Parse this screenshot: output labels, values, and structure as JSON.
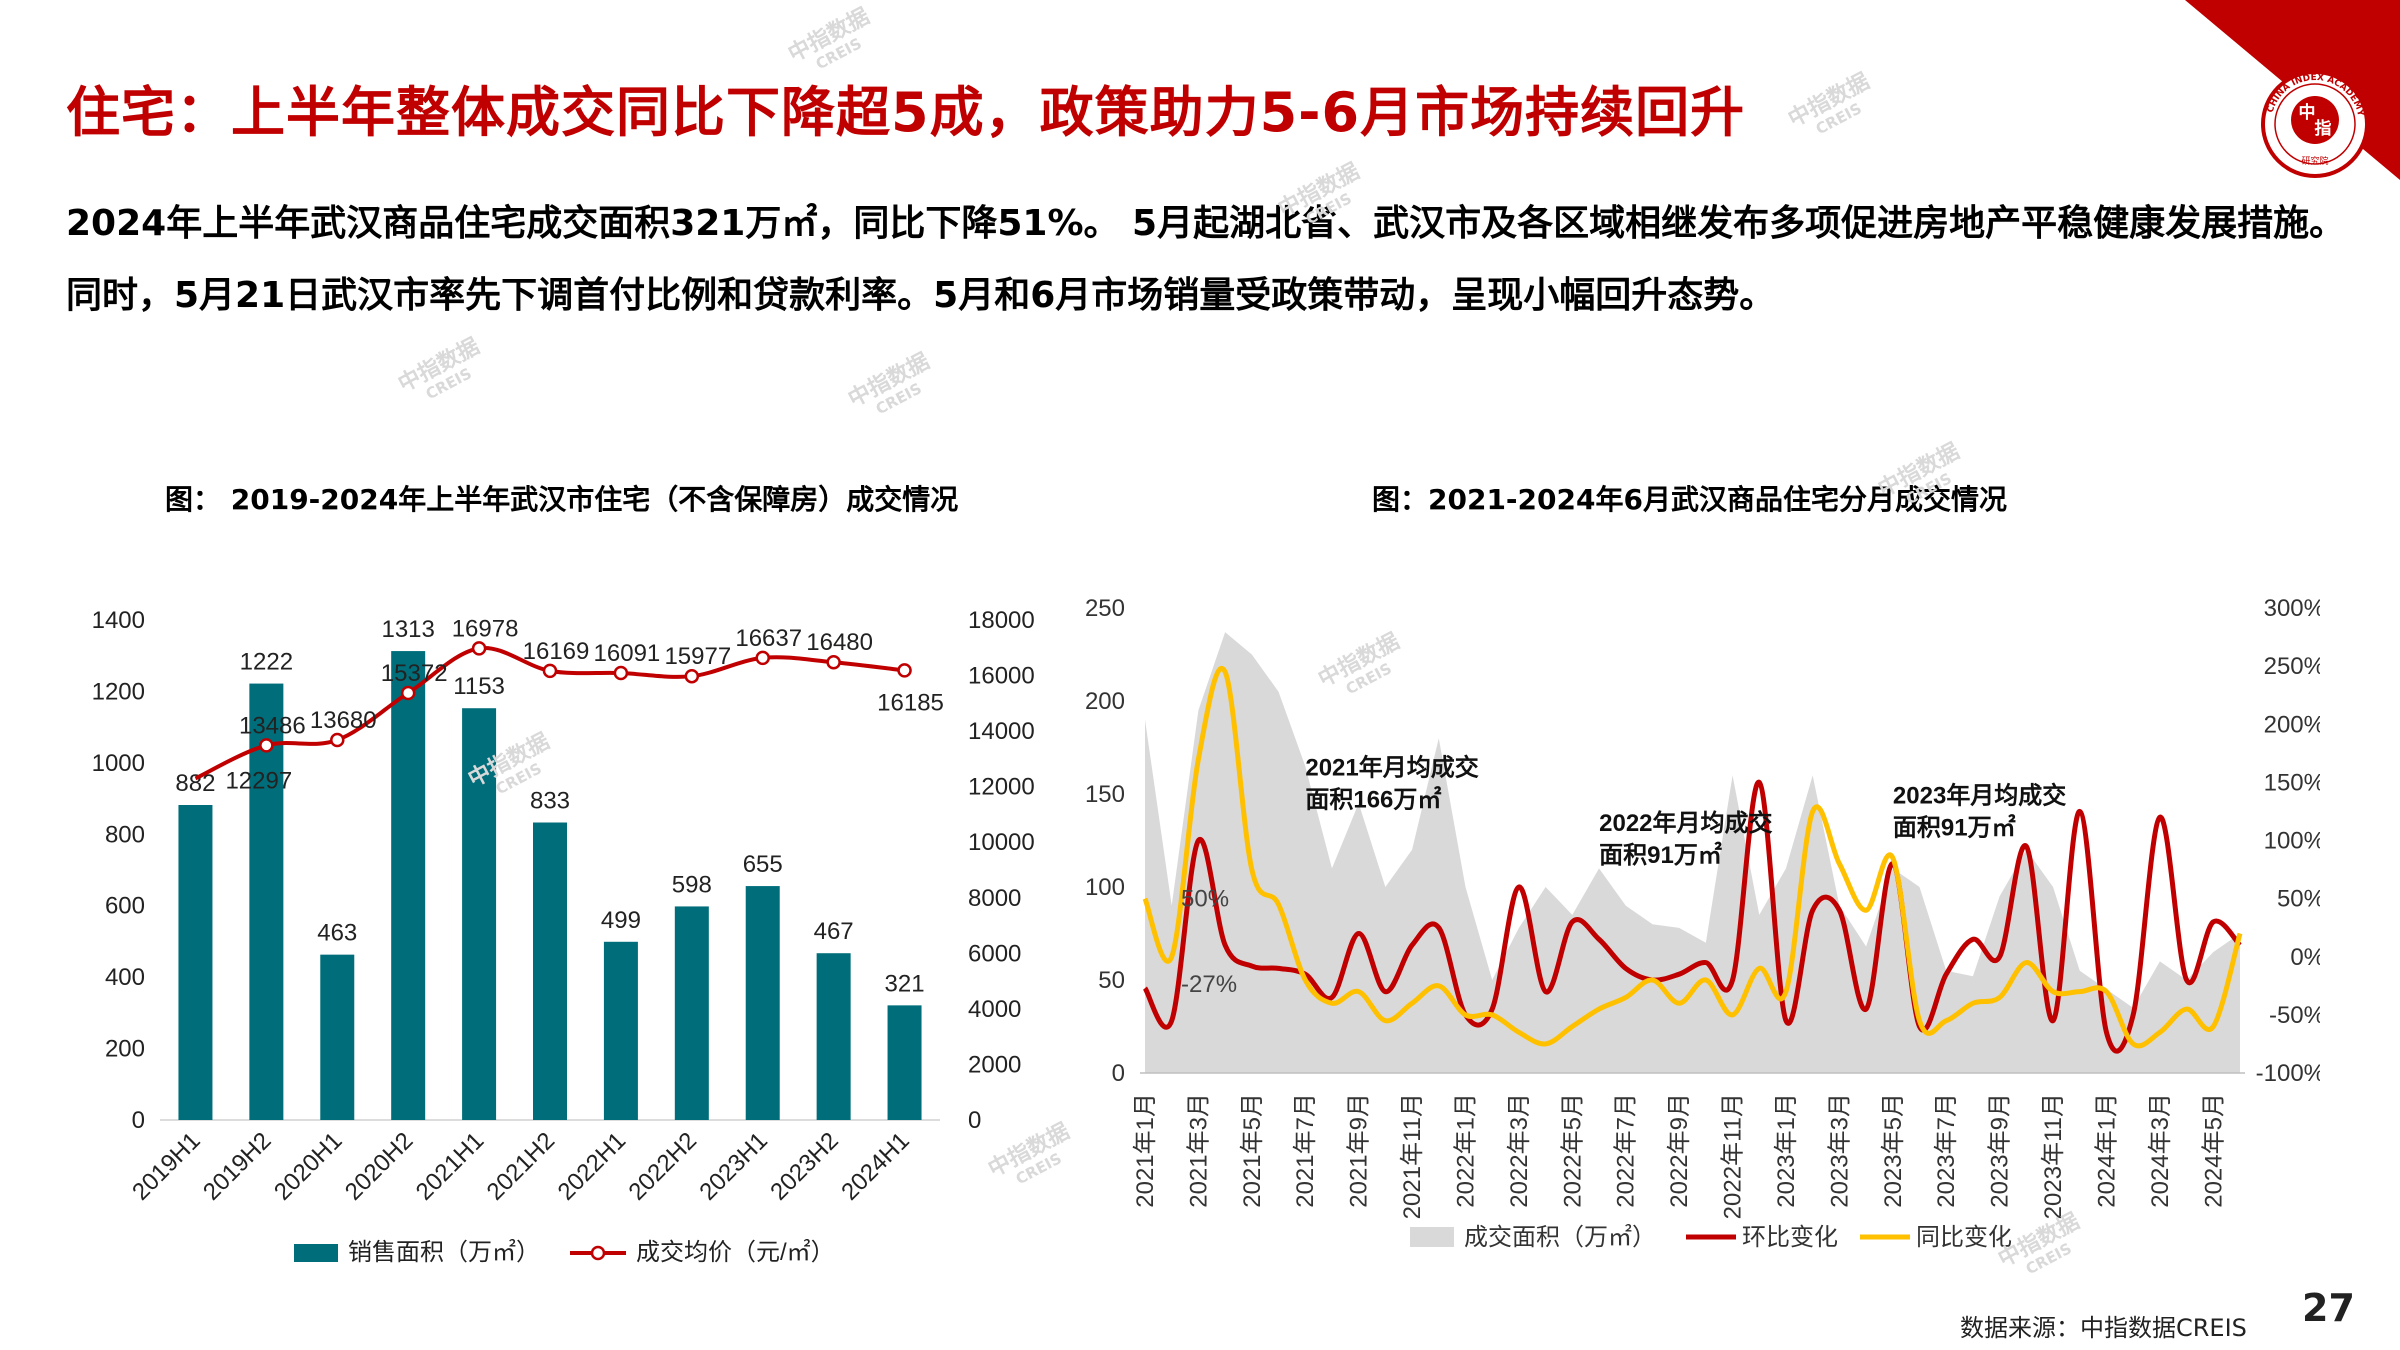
{
  "page": {
    "title": "住宅：上半年整体成交同比下降超5成，政策助力5-6月市场持续回升",
    "lead": "2024年上半年武汉商品住宅成交面积321万㎡，同比下降51%。 5月起湖北省、武汉市及各区域相继发布多项促进房地产平稳健康发展措施。同时，5月21日武汉市率先下调首付比例和贷款利率。5月和6月市场销量受政策带动，呈现小幅回升态势。",
    "source": "数据来源：中指数据CREIS",
    "page_number": "27",
    "logo_top": "中",
    "logo_bottom": "指",
    "logo_ring": "CHINA INDEX ACADEMY",
    "logo_sub": "研究院",
    "watermark_cn": "中指数据",
    "watermark_en": "CREIS",
    "accent_color": "#c00000"
  },
  "chart_data": [
    {
      "type": "bar",
      "title": "图： 2019-2024年上半年武汉市住宅（不含保障房）成交情况",
      "categories": [
        "2019H1",
        "2019H2",
        "2020H1",
        "2020H2",
        "2021H1",
        "2021H2",
        "2022H1",
        "2022H2",
        "2023H1",
        "2023H2",
        "2024H1"
      ],
      "series": [
        {
          "name": "销售面积（万㎡）",
          "type": "bar",
          "axis": "left",
          "color": "#006e7a",
          "values": [
            882,
            1222,
            463,
            1313,
            1153,
            833,
            499,
            598,
            655,
            467,
            321
          ]
        },
        {
          "name": "成交均价（元/㎡）",
          "type": "line",
          "axis": "right",
          "color": "#c00000",
          "values": [
            12297,
            13486,
            13680,
            15372,
            16978,
            16169,
            16091,
            15977,
            16637,
            16480,
            16185
          ]
        }
      ],
      "ylim": [
        0,
        1400
      ],
      "y_ticks": [
        "1400",
        "1200",
        "1000",
        "800",
        "600",
        "400",
        "200",
        "0"
      ],
      "y2lim": [
        0,
        18000
      ],
      "y2_ticks": [
        "18000",
        "16000",
        "14000",
        "12000",
        "10000",
        "8000",
        "6000",
        "4000",
        "2000",
        "0"
      ],
      "legend": "bottom"
    },
    {
      "type": "area",
      "title": "图：2021-2024年6月武汉商品住宅分月成交情况",
      "x_tick_labels": [
        "2021年1月",
        "2021年3月",
        "2021年5月",
        "2021年7月",
        "2021年9月",
        "2021年11月",
        "2022年1月",
        "2022年3月",
        "2022年5月",
        "2022年7月",
        "2022年9月",
        "2022年11月",
        "2023年1月",
        "2023年3月",
        "2023年5月",
        "2023年7月",
        "2023年9月",
        "2023年11月",
        "2024年1月",
        "2024年3月",
        "2024年5月"
      ],
      "x": [
        "2021-01",
        "2021-02",
        "2021-03",
        "2021-04",
        "2021-05",
        "2021-06",
        "2021-07",
        "2021-08",
        "2021-09",
        "2021-10",
        "2021-11",
        "2021-12",
        "2022-01",
        "2022-02",
        "2022-03",
        "2022-04",
        "2022-05",
        "2022-06",
        "2022-07",
        "2022-08",
        "2022-09",
        "2022-10",
        "2022-11",
        "2022-12",
        "2023-01",
        "2023-02",
        "2023-03",
        "2023-04",
        "2023-05",
        "2023-06",
        "2023-07",
        "2023-08",
        "2023-09",
        "2023-10",
        "2023-11",
        "2023-12",
        "2024-01",
        "2024-02",
        "2024-03",
        "2024-04",
        "2024-05",
        "2024-06"
      ],
      "series": [
        {
          "name": "成交面积（万㎡）",
          "type": "area",
          "axis": "left",
          "color": "#d9d9d9",
          "values": [
            190,
            90,
            195,
            237,
            225,
            205,
            165,
            110,
            145,
            100,
            120,
            180,
            100,
            50,
            78,
            100,
            85,
            110,
            90,
            80,
            78,
            70,
            160,
            85,
            110,
            160,
            90,
            68,
            110,
            100,
            55,
            52,
            95,
            120,
            100,
            55,
            45,
            35,
            60,
            50,
            65,
            75
          ]
        },
        {
          "name": "环比变化",
          "type": "line",
          "axis": "right",
          "color": "#c00000",
          "values": [
            -27,
            -55,
            100,
            10,
            -8,
            -10,
            -15,
            -35,
            20,
            -30,
            10,
            25,
            -50,
            -45,
            60,
            -30,
            30,
            15,
            -10,
            -20,
            -15,
            -5,
            -20,
            150,
            -55,
            40,
            40,
            -45,
            80,
            -60,
            -15,
            15,
            0,
            95,
            -55,
            125,
            -65,
            -50,
            120,
            -20,
            30,
            10
          ]
        },
        {
          "name": "同比变化",
          "type": "line",
          "axis": "right",
          "color": "#ffc000",
          "values": [
            50,
            0,
            170,
            245,
            75,
            45,
            -20,
            -40,
            -30,
            -55,
            -40,
            -25,
            -50,
            -50,
            -65,
            -75,
            -60,
            -45,
            -35,
            -20,
            -40,
            -20,
            -50,
            -10,
            -30,
            125,
            80,
            40,
            85,
            -55,
            -55,
            -40,
            -35,
            -5,
            -30,
            -30,
            -30,
            -75,
            -65,
            -45,
            -60,
            20
          ]
        }
      ],
      "ylim": [
        0,
        250
      ],
      "y_ticks": [
        "250",
        "200",
        "150",
        "100",
        "50",
        "0"
      ],
      "y2lim": [
        -100,
        300
      ],
      "y2_ticks": [
        "300%",
        "250%",
        "200%",
        "150%",
        "100%",
        "50%",
        "0%",
        "-50%",
        "-100%"
      ],
      "annotations": [
        {
          "text_line1": "2021年月均成交",
          "text_line2": "面积166万㎡",
          "at": "2021-10"
        },
        {
          "text_line1": "2022年月均成交",
          "text_line2": "面积91万㎡",
          "at": "2022-09"
        },
        {
          "text_line1": "2023年月均成交",
          "text_line2": "面积91万㎡",
          "at": "2023-08"
        }
      ],
      "point_labels": [
        {
          "text": "50%",
          "series": "同比变化",
          "x": "2021-01"
        },
        {
          "text": "-27%",
          "series": "环比变化",
          "x": "2021-01"
        }
      ],
      "legend": "bottom"
    }
  ]
}
